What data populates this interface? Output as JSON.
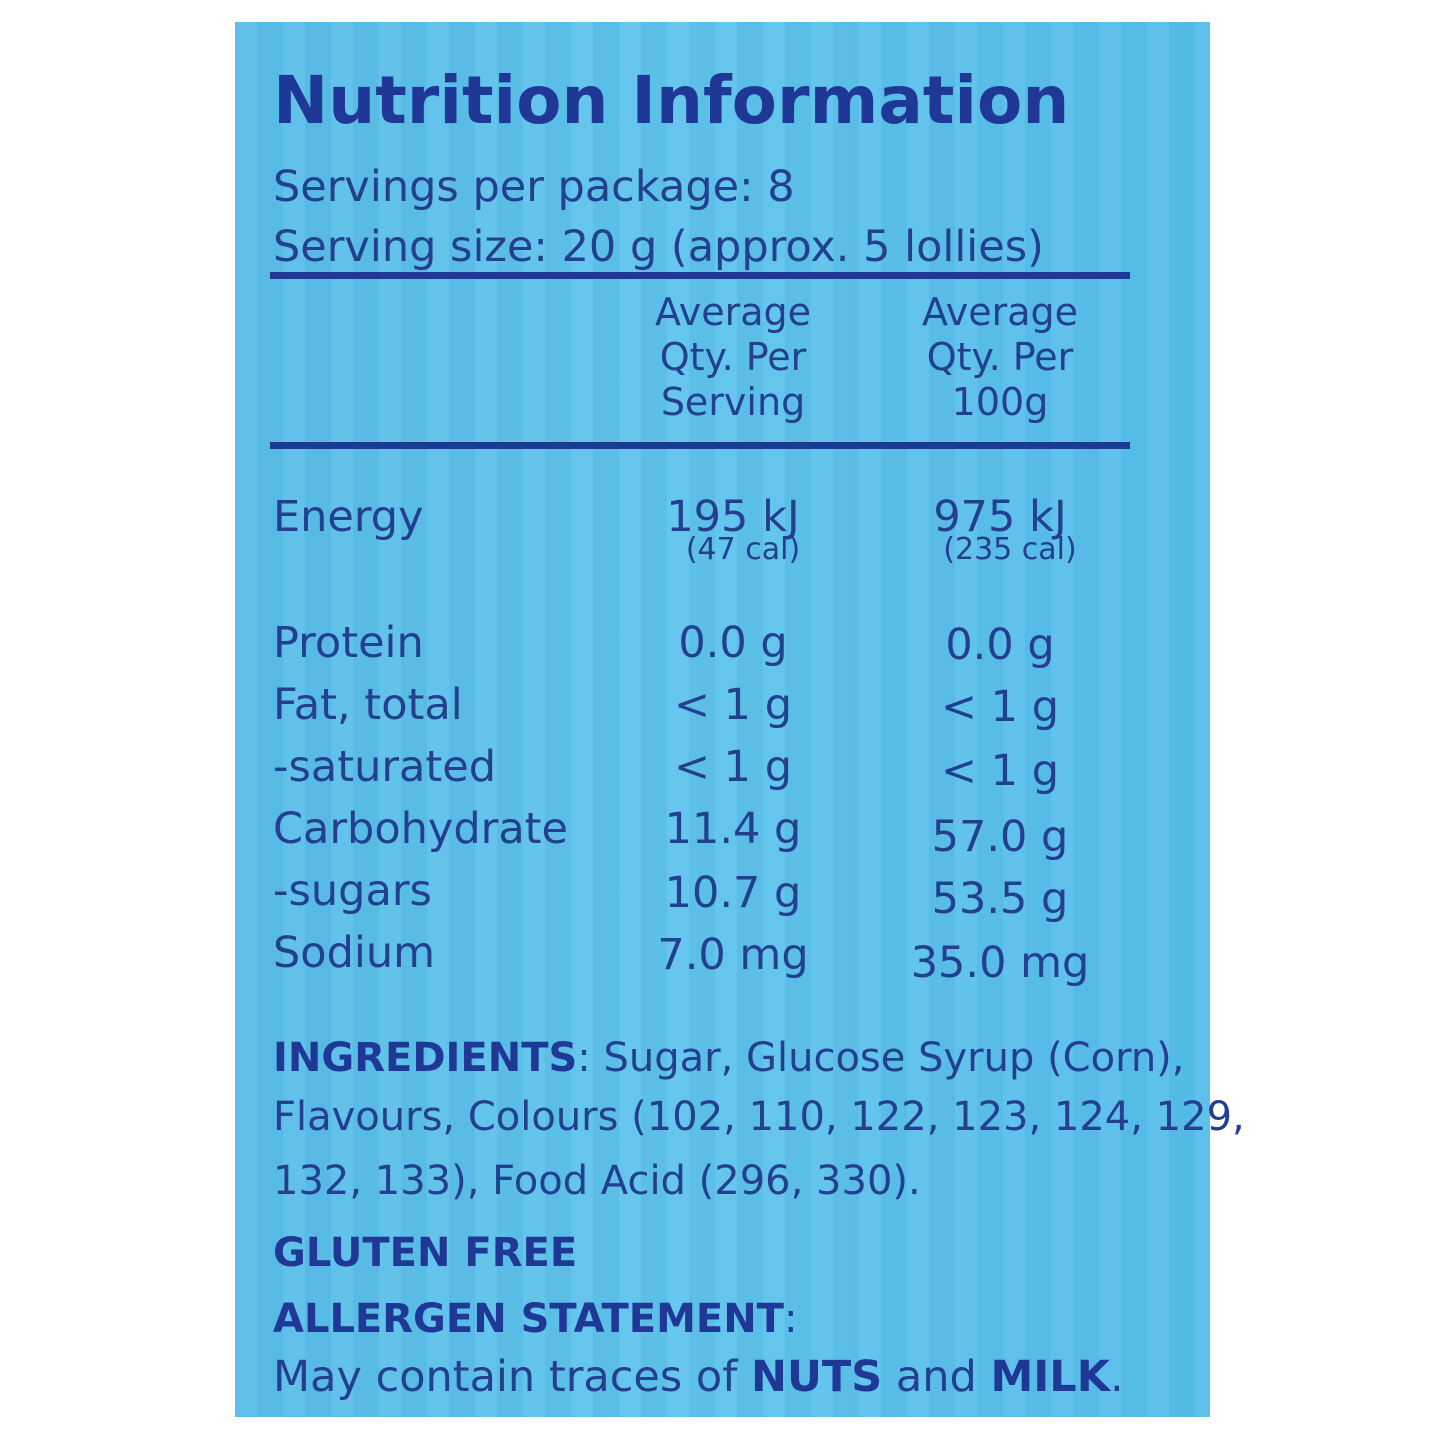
{
  "label": {
    "title": "Nutrition Information",
    "servings_per_package": "Servings per package: 8",
    "serving_size": "Serving size: 20 g (approx. 5 lollies)",
    "columns": [
      "Average\nQty. Per\nServing",
      "Average\nQty. Per\n100g"
    ],
    "energy": {
      "label": "Energy",
      "per_serving": "195 kJ",
      "per_serving_cal": "(47 cal)",
      "per_100g": "975 kJ",
      "per_100g_cal": "(235 cal)"
    },
    "rows": [
      {
        "label": "Protein",
        "per_serving": "0.0 g",
        "per_100g": "0.0 g"
      },
      {
        "label": "Fat, total",
        "per_serving": "< 1 g",
        "per_100g": "< 1 g"
      },
      {
        "label": "-saturated",
        "per_serving": "< 1 g",
        "per_100g": "< 1 g"
      },
      {
        "label": "Carbohydrate",
        "per_serving": "11.4 g",
        "per_100g": "57.0 g"
      },
      {
        "label": "-sugars",
        "per_serving": "10.7 g",
        "per_100g": "53.5 g"
      },
      {
        "label": "Sodium",
        "per_serving": "7.0 mg",
        "per_100g": "35.0 mg"
      }
    ],
    "ingredients": {
      "heading": "INGREDIENTS",
      "line1": ": Sugar, Glucose Syrup (Corn),",
      "line2": "Flavours, Colours (102, 110, 122, 123, 124, 129,",
      "line3": "132, 133), Food Acid (296, 330)."
    },
    "gluten_free": "GLUTEN FREE",
    "allergen": {
      "heading": "ALLERGEN STATEMENT",
      "colon": ":",
      "prefix": "May contain traces of ",
      "nuts": "NUTS",
      "and": " and ",
      "milk": "MILK",
      "suffix": "."
    }
  },
  "colors": {
    "panel": "#5ec3ec",
    "text": "#233f8e",
    "heading": "#1f3795"
  }
}
